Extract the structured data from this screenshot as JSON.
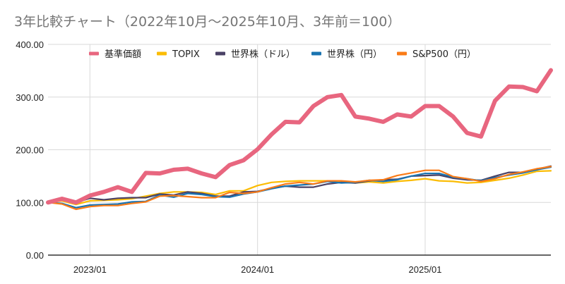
{
  "chart_data": {
    "type": "line",
    "title": "3年比較チャート（2022年10月～2025年10月、3年前＝100）",
    "xlabel": "",
    "ylabel": "",
    "ylim": [
      0,
      400
    ],
    "yticks": [
      "0.00",
      "100.00",
      "200.00",
      "300.00",
      "400.00"
    ],
    "ytick_values": [
      0,
      100,
      200,
      300,
      400
    ],
    "xticks": [
      {
        "label": "2023/01",
        "index": 3
      },
      {
        "label": "2024/01",
        "index": 15
      },
      {
        "label": "2025/01",
        "index": 27
      }
    ],
    "grid": true,
    "legend_position": "top",
    "x": [
      "2022/10",
      "2022/11",
      "2022/12",
      "2023/01",
      "2023/02",
      "2023/03",
      "2023/04",
      "2023/05",
      "2023/06",
      "2023/07",
      "2023/08",
      "2023/09",
      "2023/10",
      "2023/11",
      "2023/12",
      "2024/01",
      "2024/02",
      "2024/03",
      "2024/04",
      "2024/05",
      "2024/06",
      "2024/07",
      "2024/08",
      "2024/09",
      "2024/10",
      "2024/11",
      "2024/12",
      "2025/01",
      "2025/02",
      "2025/03",
      "2025/04",
      "2025/05",
      "2025/06",
      "2025/07",
      "2025/08",
      "2025/09",
      "2025/10"
    ],
    "series": [
      {
        "name": "基準価額",
        "color": "#e8667f",
        "width": "thick",
        "values": [
          100,
          107,
          100,
          113,
          120,
          129,
          120,
          156,
          155,
          162,
          164,
          155,
          148,
          171,
          180,
          201,
          229,
          253,
          252,
          283,
          300,
          304,
          263,
          259,
          253,
          267,
          263,
          283,
          283,
          263,
          232,
          225,
          293,
          320,
          319,
          311,
          351
        ]
      },
      {
        "name": "TOPIX",
        "color": "#fbbc04",
        "width": "normal",
        "values": [
          100,
          103,
          96,
          103,
          104,
          105,
          107,
          112,
          117,
          120,
          120,
          119,
          115,
          122,
          122,
          132,
          138,
          140,
          141,
          141,
          141,
          140,
          137,
          139,
          137,
          140,
          142,
          145,
          141,
          140,
          137,
          138,
          142,
          146,
          152,
          159,
          160
        ]
      },
      {
        "name": "世界株（ドル）",
        "color": "#4a4165",
        "width": "normal",
        "values": [
          100,
          105,
          100,
          108,
          105,
          108,
          109,
          109,
          116,
          114,
          120,
          117,
          112,
          112,
          120,
          121,
          127,
          131,
          129,
          129,
          135,
          138,
          137,
          141,
          143,
          144,
          150,
          151,
          152,
          146,
          143,
          142,
          150,
          157,
          157,
          163,
          169
        ]
      },
      {
        "name": "世界株（円）",
        "color": "#1a73b0",
        "width": "normal",
        "values": [
          100,
          98,
          90,
          95,
          96,
          97,
          101,
          102,
          114,
          110,
          117,
          115,
          111,
          110,
          116,
          120,
          126,
          131,
          133,
          135,
          140,
          137,
          138,
          142,
          140,
          143,
          150,
          155,
          155,
          148,
          145,
          141,
          147,
          152,
          156,
          162,
          167
        ]
      },
      {
        "name": "S&P500（円）",
        "color": "#fa7b17",
        "width": "normal",
        "values": [
          100,
          97,
          87,
          92,
          94,
          94,
          98,
          101,
          112,
          113,
          111,
          109,
          109,
          119,
          117,
          120,
          128,
          135,
          138,
          135,
          141,
          141,
          139,
          142,
          143,
          151,
          156,
          161,
          161,
          149,
          145,
          140,
          145,
          153,
          158,
          164,
          168
        ]
      }
    ]
  },
  "colors": {
    "grid": "#d9d9d9",
    "axis": "#333333",
    "title": "#757575"
  }
}
